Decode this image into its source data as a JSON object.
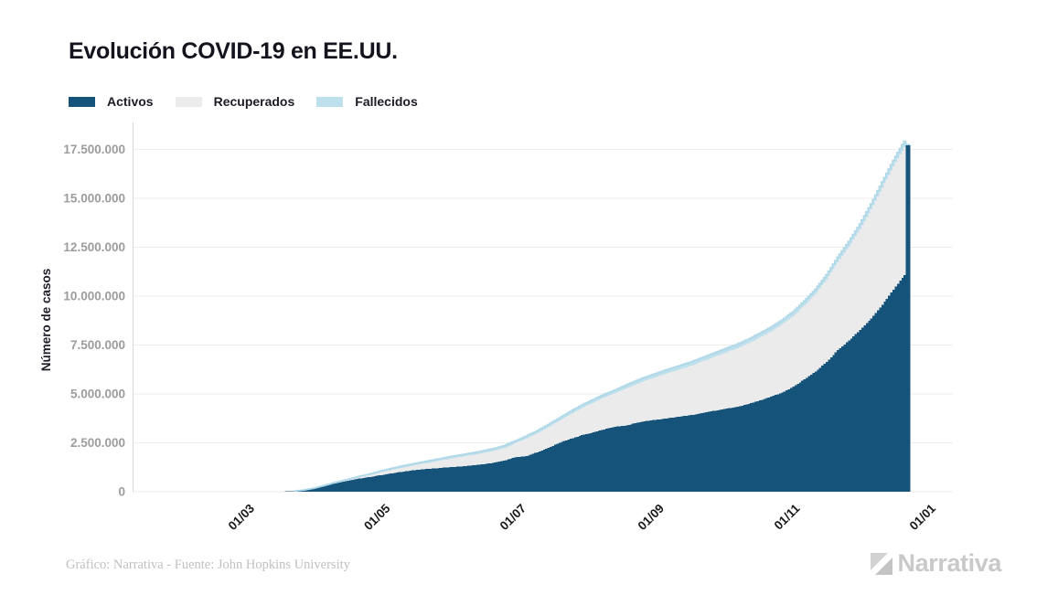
{
  "title": "Evolución COVID-19 en EE.UU.",
  "footer": {
    "credit": "Gráfico: Narrativa - Fuente: John Hopkins University",
    "brand": "Narrativa"
  },
  "chart_data": {
    "type": "area",
    "stacked": true,
    "title": "Evolución COVID-19 en EE.UU.",
    "xlabel": "",
    "ylabel": "Número de casos",
    "ylim": [
      0,
      18500000
    ],
    "grid": "horizontal",
    "legend_position": "top-left",
    "colors": {
      "activos": "#15537B",
      "recuperados": "#EBEBEB",
      "fallecidos": "#BEDFEC",
      "fallecidos_edge": "#AFD8E8",
      "gridline": "#EDEDED",
      "axis_line": "#D8D8D8",
      "y_tick_text": "#9C9C9C",
      "x_tick_text": "#1B1B1B",
      "axis_title_text": "#1E1E28"
    },
    "y_ticks": {
      "values": [
        0,
        2500000,
        5000000,
        7500000,
        10000000,
        12500000,
        15000000,
        17500000
      ],
      "labels": [
        "0",
        "2.500.000",
        "5.000.000",
        "7.500.000",
        "10.000.000",
        "12.500.000",
        "15.000.000",
        "17.500.000"
      ]
    },
    "x_ticks": [
      {
        "label": "01/03",
        "date": "2020-03-01"
      },
      {
        "label": "01/05",
        "date": "2020-05-01"
      },
      {
        "label": "01/07",
        "date": "2020-07-01"
      },
      {
        "label": "01/09",
        "date": "2020-09-01"
      },
      {
        "label": "01/11",
        "date": "2020-11-01"
      },
      {
        "label": "01/01",
        "date": "2021-01-01"
      }
    ],
    "x_dates": [
      "2020-01-22",
      "2020-02-05",
      "2020-02-20",
      "2020-03-01",
      "2020-03-06",
      "2020-03-11",
      "2020-03-16",
      "2020-03-21",
      "2020-03-26",
      "2020-03-31",
      "2020-04-05",
      "2020-04-10",
      "2020-04-15",
      "2020-04-20",
      "2020-04-25",
      "2020-04-30",
      "2020-05-05",
      "2020-05-10",
      "2020-05-15",
      "2020-05-20",
      "2020-05-25",
      "2020-05-30",
      "2020-06-04",
      "2020-06-09",
      "2020-06-14",
      "2020-06-19",
      "2020-06-24",
      "2020-06-29",
      "2020-07-04",
      "2020-07-09",
      "2020-07-14",
      "2020-07-19",
      "2020-07-24",
      "2020-07-29",
      "2020-08-03",
      "2020-08-08",
      "2020-08-13",
      "2020-08-18",
      "2020-08-23",
      "2020-08-28",
      "2020-09-02",
      "2020-09-07",
      "2020-09-12",
      "2020-09-17",
      "2020-09-22",
      "2020-09-27",
      "2020-10-02",
      "2020-10-07",
      "2020-10-12",
      "2020-10-17",
      "2020-10-22",
      "2020-10-27",
      "2020-11-01",
      "2020-11-06",
      "2020-11-11",
      "2020-11-16",
      "2020-11-21",
      "2020-11-26",
      "2020-12-01",
      "2020-12-06",
      "2020-12-11",
      "2020-12-16",
      "2020-12-20",
      "2020-12-21",
      "2020-12-22",
      "2020-12-23"
    ],
    "series": [
      {
        "name": "Activos",
        "color": "#15537B",
        "values": [
          1,
          11,
          14,
          67,
          280,
          1250,
          4500,
          23500,
          82000,
          177000,
          310000,
          449000,
          556000,
          670000,
          754000,
          852000,
          943000,
          1034000,
          1104000,
          1165000,
          1197000,
          1250000,
          1280000,
          1335000,
          1398000,
          1474000,
          1579000,
          1760000,
          1817000,
          2016000,
          2246000,
          2501000,
          2705000,
          2887000,
          3031000,
          3187000,
          3318000,
          3389000,
          3527000,
          3633000,
          3696000,
          3779000,
          3858000,
          3936000,
          4050000,
          4145000,
          4252000,
          4338000,
          4489000,
          4667000,
          4863000,
          5063000,
          5363000,
          5743000,
          6151000,
          6631000,
          7239000,
          7726000,
          8274000,
          8863000,
          9559000,
          10335000,
          10940000,
          11080000,
          17750000,
          17750000
        ]
      },
      {
        "name": "Recuperados",
        "color": "#EBEBEB",
        "values": [
          0,
          0,
          3,
          7,
          10,
          10,
          17,
          180,
          900,
          7000,
          17400,
          29000,
          52000,
          72300,
          99000,
          154000,
          190000,
          216000,
          251000,
          294000,
          367000,
          417000,
          485000,
          525000,
          562000,
          599000,
          647000,
          705000,
          894000,
          969000,
          1049000,
          1131000,
          1262000,
          1389000,
          1513000,
          1624000,
          1715000,
          1899000,
          1998000,
          2101000,
          2232000,
          2334000,
          2435000,
          2540000,
          2647000,
          2766000,
          2873000,
          3000000,
          3100000,
          3221000,
          3323000,
          3488000,
          3613000,
          3772000,
          3962000,
          4219000,
          4501000,
          4809000,
          5146000,
          5576000,
          5985000,
          6298000,
          6500000,
          6530000,
          0,
          0
        ]
      },
      {
        "name": "Fallecidos",
        "color": "#BEDFEC",
        "values": [
          0,
          0,
          0,
          1,
          17,
          40,
          85,
          300,
          1200,
          3900,
          9600,
          18600,
          28300,
          42000,
          52000,
          63000,
          71000,
          80000,
          88000,
          93000,
          98000,
          104000,
          108000,
          111000,
          115000,
          118000,
          121000,
          126000,
          129000,
          133000,
          137000,
          141000,
          146000,
          151000,
          155000,
          161000,
          166000,
          172000,
          177000,
          182000,
          186000,
          189000,
          193000,
          198000,
          201000,
          205000,
          209000,
          212000,
          215000,
          219000,
          223000,
          227000,
          231000,
          236000,
          241000,
          246000,
          254000,
          262000,
          270000,
          281000,
          296000,
          307000,
          315000,
          317000,
          0,
          0
        ]
      }
    ]
  }
}
